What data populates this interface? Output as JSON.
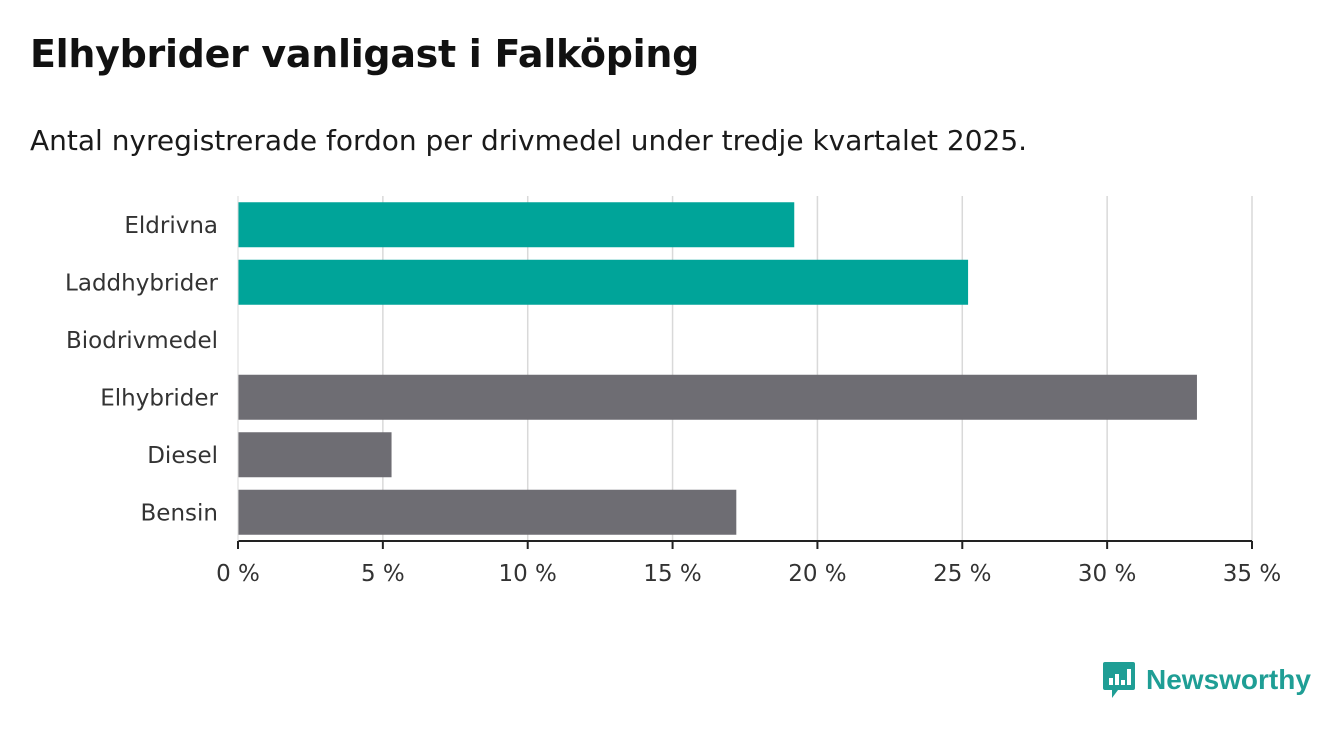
{
  "title": "Elhybrider vanligast i Falköping",
  "subtitle": "Antal nyregistrerade fordon per drivmedel under tredje kvartalet 2025.",
  "brand": {
    "name": "Newsworthy",
    "color": "#1f9e95",
    "icon": "newsworthy-logo-icon"
  },
  "colors": {
    "highlight": "#00a499",
    "default": "#6e6d73",
    "grid": "#d9d9d9",
    "axis": "#222222"
  },
  "chart_data": {
    "type": "bar",
    "orientation": "horizontal",
    "categories": [
      "Eldrivna",
      "Laddhybrider",
      "Biodrivmedel",
      "Elhybrider",
      "Diesel",
      "Bensin"
    ],
    "values": [
      19.2,
      25.2,
      0,
      33.1,
      5.3,
      17.2
    ],
    "highlighted": [
      true,
      true,
      true,
      false,
      false,
      false
    ],
    "xlim": [
      0,
      35
    ],
    "xticks": [
      0,
      5,
      10,
      15,
      20,
      25,
      30,
      35
    ],
    "xtick_labels": [
      "0 %",
      "5 %",
      "10 %",
      "15 %",
      "20 %",
      "25 %",
      "30 %",
      "35 %"
    ],
    "unit": "%",
    "grid": true,
    "xlabel": "",
    "ylabel": ""
  }
}
